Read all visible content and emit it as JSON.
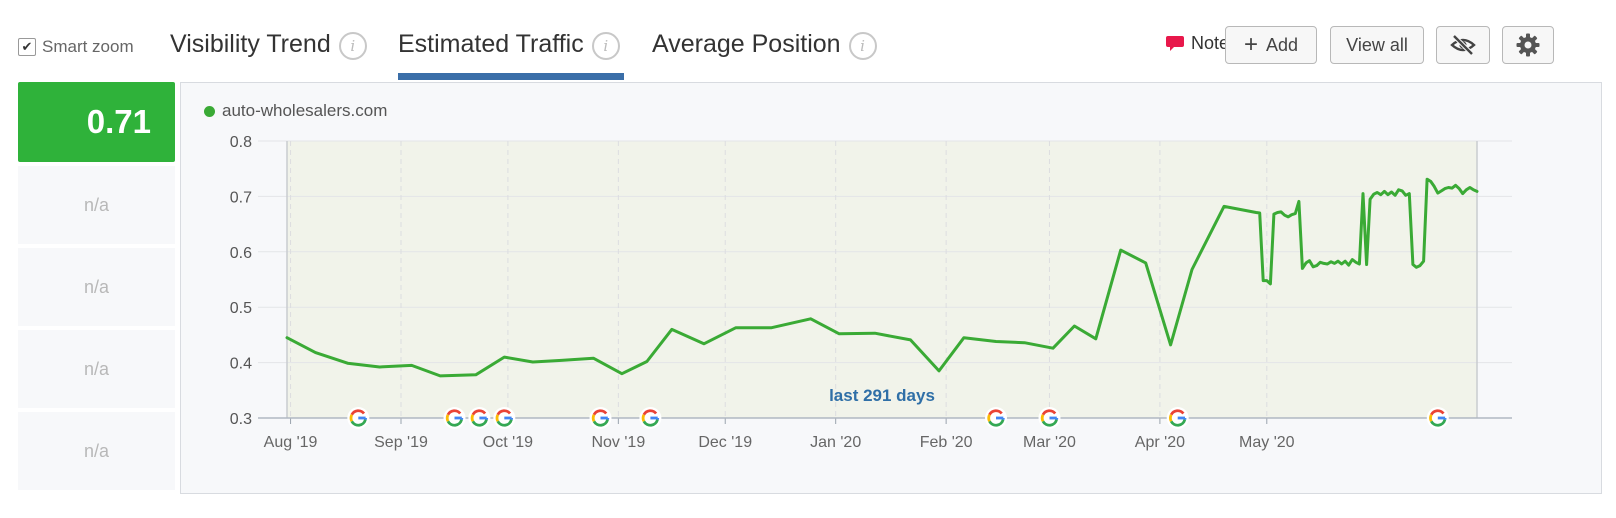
{
  "toolbar": {
    "smart_zoom_label": "Smart zoom",
    "smart_zoom_checked": true,
    "tabs": [
      {
        "label": "Visibility Trend",
        "active": false
      },
      {
        "label": "Estimated Traffic",
        "active": true
      },
      {
        "label": "Average Position",
        "active": false
      }
    ],
    "info_glyph": "i",
    "notes_label": "Notes:",
    "add_label": "Add",
    "add_glyph": "+",
    "view_all_label": "View all",
    "hide_icon": "eye-slash-icon",
    "settings_icon": "gear-icon"
  },
  "sidebar": {
    "main_value": "0.71",
    "main_color": "#2fb23a",
    "rows": [
      "n/a",
      "n/a",
      "n/a",
      "n/a"
    ]
  },
  "chart_data": {
    "type": "line",
    "title": "",
    "xlabel": "",
    "ylabel": "",
    "ylim": [
      0.3,
      0.8
    ],
    "yticks": [
      "0.3",
      "0.4",
      "0.5",
      "0.6",
      "0.7",
      "0.8"
    ],
    "x_ticks": [
      {
        "date": "2019-08-01",
        "label": "Aug '19"
      },
      {
        "date": "2019-09-01",
        "label": "Sep '19"
      },
      {
        "date": "2019-10-01",
        "label": "Oct '19"
      },
      {
        "date": "2019-11-01",
        "label": "Nov '19"
      },
      {
        "date": "2019-12-01",
        "label": "Dec '19"
      },
      {
        "date": "2020-01-01",
        "label": "Jan '20"
      },
      {
        "date": "2020-02-01",
        "label": "Feb '20"
      },
      {
        "date": "2020-03-01",
        "label": "Mar '20"
      },
      {
        "date": "2020-04-01",
        "label": "Apr '20"
      },
      {
        "date": "2020-05-01",
        "label": "May '20"
      }
    ],
    "range_label": "last 291 days",
    "grid": true,
    "legend_position": "top-left",
    "series": [
      {
        "name": "auto-wholesalers.com",
        "color": "#3aaa35",
        "points": [
          [
            "2019-07-31",
            0.445
          ],
          [
            "2019-08-08",
            0.418
          ],
          [
            "2019-08-17",
            0.399
          ],
          [
            "2019-08-26",
            0.392
          ],
          [
            "2019-09-04",
            0.395
          ],
          [
            "2019-09-12",
            0.376
          ],
          [
            "2019-09-22",
            0.378
          ],
          [
            "2019-09-30",
            0.41
          ],
          [
            "2019-10-08",
            0.401
          ],
          [
            "2019-10-16",
            0.404
          ],
          [
            "2019-10-25",
            0.408
          ],
          [
            "2019-11-02",
            0.38
          ],
          [
            "2019-11-09",
            0.402
          ],
          [
            "2019-11-16",
            0.46
          ],
          [
            "2019-11-25",
            0.434
          ],
          [
            "2019-12-04",
            0.463
          ],
          [
            "2019-12-14",
            0.463
          ],
          [
            "2019-12-25",
            0.479
          ],
          [
            "2020-01-02",
            0.452
          ],
          [
            "2020-01-12",
            0.453
          ],
          [
            "2020-01-22",
            0.441
          ],
          [
            "2020-01-30",
            0.385
          ],
          [
            "2020-02-06",
            0.445
          ],
          [
            "2020-02-15",
            0.438
          ],
          [
            "2020-02-23",
            0.436
          ],
          [
            "2020-03-02",
            0.426
          ],
          [
            "2020-03-08",
            0.466
          ],
          [
            "2020-03-14",
            0.443
          ],
          [
            "2020-03-21",
            0.603
          ],
          [
            "2020-03-28",
            0.58
          ],
          [
            "2020-04-04",
            0.432
          ],
          [
            "2020-04-10",
            0.568
          ],
          [
            "2020-04-19",
            0.682
          ],
          [
            "2020-04-28",
            0.671
          ],
          [
            "2020-04-29",
            0.67
          ],
          [
            "2020-04-30",
            0.548
          ],
          [
            "2020-05-01",
            0.548
          ],
          [
            "2020-05-02",
            0.542
          ],
          [
            "2020-05-03",
            0.668
          ],
          [
            "2020-05-04",
            0.671
          ],
          [
            "2020-05-05",
            0.672
          ],
          [
            "2020-05-06",
            0.666
          ],
          [
            "2020-05-07",
            0.663
          ],
          [
            "2020-05-08",
            0.667
          ],
          [
            "2020-05-09",
            0.669
          ],
          [
            "2020-05-10",
            0.691
          ],
          [
            "2020-05-11",
            0.57
          ],
          [
            "2020-05-12",
            0.58
          ],
          [
            "2020-05-13",
            0.584
          ],
          [
            "2020-05-14",
            0.573
          ],
          [
            "2020-05-15",
            0.575
          ],
          [
            "2020-05-16",
            0.581
          ],
          [
            "2020-05-17",
            0.579
          ],
          [
            "2020-05-18",
            0.578
          ],
          [
            "2020-05-19",
            0.582
          ],
          [
            "2020-05-20",
            0.579
          ],
          [
            "2020-05-21",
            0.583
          ],
          [
            "2020-05-22",
            0.578
          ],
          [
            "2020-05-23",
            0.583
          ],
          [
            "2020-05-24",
            0.576
          ],
          [
            "2020-05-25",
            0.586
          ],
          [
            "2020-05-26",
            0.581
          ],
          [
            "2020-05-27",
            0.578
          ],
          [
            "2020-05-28",
            0.705
          ],
          [
            "2020-05-29",
            0.577
          ],
          [
            "2020-05-30",
            0.695
          ],
          [
            "2020-05-31",
            0.704
          ],
          [
            "2020-06-01",
            0.707
          ],
          [
            "2020-06-02",
            0.703
          ],
          [
            "2020-06-03",
            0.709
          ],
          [
            "2020-06-04",
            0.703
          ],
          [
            "2020-06-05",
            0.708
          ],
          [
            "2020-06-06",
            0.702
          ],
          [
            "2020-06-07",
            0.712
          ],
          [
            "2020-06-08",
            0.71
          ],
          [
            "2020-06-09",
            0.702
          ],
          [
            "2020-06-10",
            0.705
          ],
          [
            "2020-06-11",
            0.577
          ],
          [
            "2020-06-12",
            0.572
          ],
          [
            "2020-06-13",
            0.575
          ],
          [
            "2020-06-14",
            0.583
          ],
          [
            "2020-06-15",
            0.731
          ],
          [
            "2020-06-16",
            0.727
          ],
          [
            "2020-06-17",
            0.718
          ],
          [
            "2020-06-18",
            0.706
          ],
          [
            "2020-06-19",
            0.71
          ],
          [
            "2020-06-20",
            0.714
          ],
          [
            "2020-06-21",
            0.716
          ],
          [
            "2020-06-22",
            0.715
          ],
          [
            "2020-06-23",
            0.72
          ],
          [
            "2020-06-24",
            0.714
          ],
          [
            "2020-06-25",
            0.705
          ],
          [
            "2020-06-26",
            0.712
          ],
          [
            "2020-06-27",
            0.716
          ],
          [
            "2020-06-28",
            0.712
          ],
          [
            "2020-06-29",
            0.709
          ]
        ]
      }
    ],
    "google_updates": [
      "2019-08-20",
      "2019-09-16",
      "2019-09-23",
      "2019-09-30",
      "2019-10-27",
      "2019-11-10",
      "2020-02-15",
      "2020-03-01",
      "2020-04-06",
      "2020-06-18"
    ]
  }
}
